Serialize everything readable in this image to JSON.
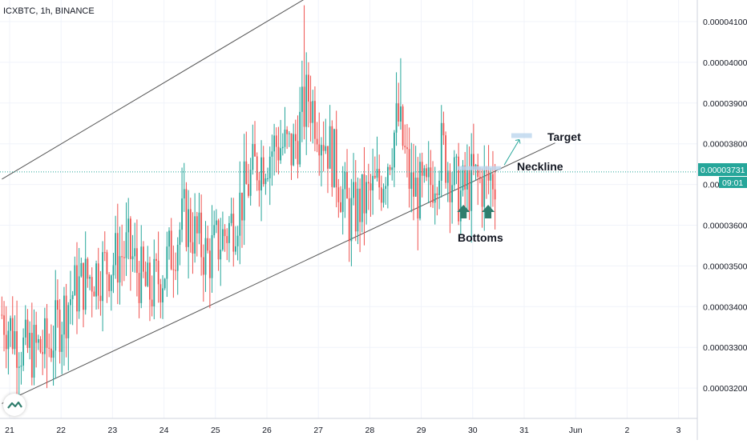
{
  "header": {
    "symbol_label": "ICXBTC, 1h, BINANCE"
  },
  "annotations": {
    "target_label": "Target",
    "neckline_label": "Neckline",
    "bottoms_label": "Bottoms"
  },
  "price_tag": {
    "value": "0.00003731",
    "countdown": "09:01"
  },
  "colors": {
    "up": "#26a69a",
    "down": "#ef5350",
    "neckline": "#26a69a",
    "channel": "#555555",
    "arrow": "#2f7d6d",
    "zone": "#bbd6ee"
  },
  "chart_data": {
    "type": "candlestick",
    "interval": "1h",
    "exchange": "BINANCE",
    "y_ticks": [
      "0.00004100",
      "0.00004000",
      "0.00003900",
      "0.00003800",
      "0.00003700",
      "0.00003600",
      "0.00003500",
      "0.00003400",
      "0.00003300",
      "0.00003200"
    ],
    "x_ticks": [
      "21",
      "22",
      "23",
      "24",
      "25",
      "26",
      "27",
      "28",
      "29",
      "30",
      "31",
      "Jun",
      "2",
      "3"
    ],
    "ylim": [
      3.15e-05,
      4.21e-05
    ],
    "last_price": 3.731e-05,
    "trend_points": [
      [
        20.85,
        3.38e-05
      ],
      [
        21.3,
        3.29e-05
      ],
      [
        21.75,
        3.3e-05
      ],
      [
        22.2,
        3.43e-05
      ],
      [
        22.6,
        3.48e-05
      ],
      [
        23.0,
        3.51e-05
      ],
      [
        23.3,
        3.54e-05
      ],
      [
        23.7,
        3.43e-05
      ],
      [
        24.0,
        3.49e-05
      ],
      [
        24.4,
        3.62e-05
      ],
      [
        24.85,
        3.52e-05
      ],
      [
        25.3,
        3.6e-05
      ],
      [
        25.8,
        3.75e-05
      ],
      [
        26.2,
        3.8e-05
      ],
      [
        26.5,
        3.78e-05
      ],
      [
        26.8,
        3.92e-05
      ],
      [
        27.3,
        3.76e-05
      ],
      [
        27.6,
        3.62e-05
      ],
      [
        27.9,
        3.66e-05
      ],
      [
        28.2,
        3.7e-05
      ],
      [
        28.55,
        3.86e-05
      ],
      [
        28.8,
        3.69e-05
      ],
      [
        29.1,
        3.67e-05
      ],
      [
        29.4,
        3.79e-05
      ],
      [
        29.75,
        3.67e-05
      ],
      [
        30.0,
        3.71e-05
      ],
      [
        30.25,
        3.7e-05
      ],
      [
        30.45,
        3.73e-05
      ]
    ],
    "spikes": [
      {
        "x": 21.72,
        "low": 3.2e-05
      },
      {
        "x": 26.72,
        "high": 4.14e-05
      },
      {
        "x": 27.62,
        "low": 3.51e-05
      },
      {
        "x": 28.58,
        "high": 4.01e-05
      }
    ],
    "channel_upper": [
      [
        20.85,
        3.713e-05
      ],
      [
        27.5,
        4.213e-05
      ]
    ],
    "channel_lower": [
      [
        20.85,
        3.162e-05
      ],
      [
        31.6,
        3.802e-05
      ]
    ],
    "neckline_zone": {
      "x_from": 29.7,
      "x_to": 30.55,
      "value": 3.74e-05
    },
    "target_zone": {
      "x_from": 30.75,
      "x_to": 31.15,
      "value": 3.82e-05
    },
    "bottom_markers": [
      29.82,
      30.3
    ]
  }
}
